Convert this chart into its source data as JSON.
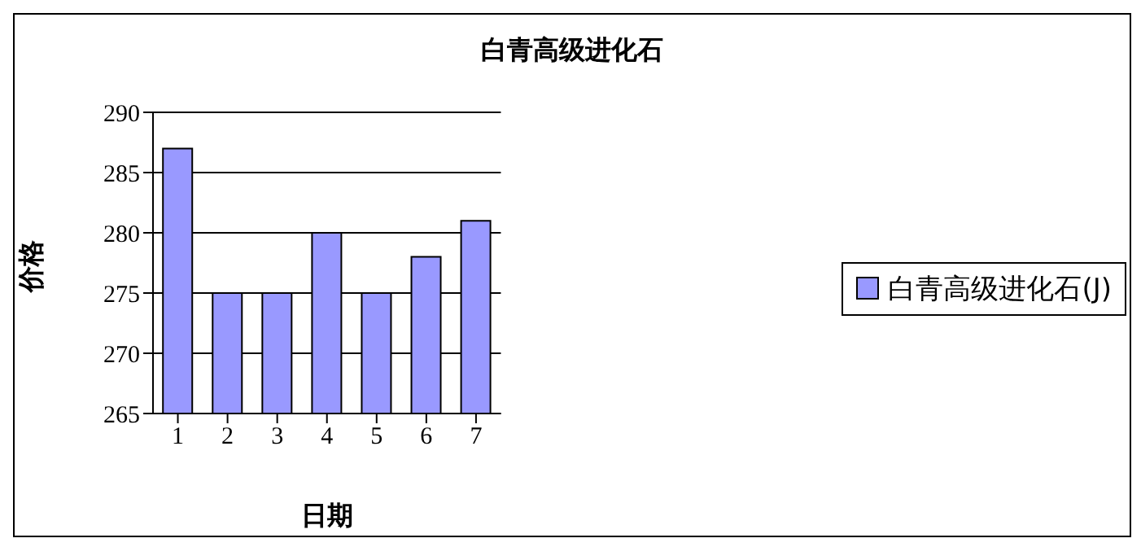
{
  "chart_data": {
    "type": "bar",
    "title": "白青高级进化石",
    "xlabel": "日期",
    "ylabel": "价格",
    "categories": [
      "1",
      "2",
      "3",
      "4",
      "5",
      "6",
      "7"
    ],
    "series": [
      {
        "name": "白青高级进化石(J)",
        "color": "#9999ff",
        "values": [
          287,
          275,
          275,
          280,
          275,
          278,
          281
        ]
      }
    ],
    "ylim": [
      265,
      290
    ],
    "yticks": [
      265,
      270,
      275,
      280,
      285,
      290
    ],
    "grid": "y",
    "legend": "right"
  }
}
